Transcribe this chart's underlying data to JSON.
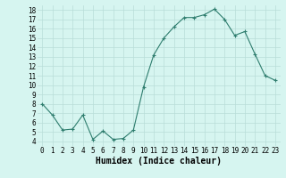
{
  "x": [
    0,
    1,
    2,
    3,
    4,
    5,
    6,
    7,
    8,
    9,
    10,
    11,
    12,
    13,
    14,
    15,
    16,
    17,
    18,
    19,
    20,
    21,
    22,
    23
  ],
  "y": [
    8.0,
    6.8,
    5.2,
    5.3,
    6.8,
    4.2,
    5.1,
    4.2,
    4.3,
    5.2,
    9.8,
    13.2,
    15.0,
    16.2,
    17.2,
    17.2,
    17.5,
    18.1,
    17.0,
    15.3,
    15.7,
    13.3,
    11.0,
    10.5
  ],
  "line_color": "#2e7d6e",
  "marker": "+",
  "marker_size": 3,
  "bg_color": "#d6f5f0",
  "grid_color": "#b8ddd8",
  "xlabel": "Humidex (Indice chaleur)",
  "xlim": [
    -0.5,
    23.5
  ],
  "ylim": [
    3.5,
    18.5
  ],
  "yticks": [
    4,
    5,
    6,
    7,
    8,
    9,
    10,
    11,
    12,
    13,
    14,
    15,
    16,
    17,
    18
  ],
  "xticks": [
    0,
    1,
    2,
    3,
    4,
    5,
    6,
    7,
    8,
    9,
    10,
    11,
    12,
    13,
    14,
    15,
    16,
    17,
    18,
    19,
    20,
    21,
    22,
    23
  ],
  "tick_fontsize": 5.5,
  "xlabel_fontsize": 7.0,
  "linewidth": 0.8,
  "markeredgewidth": 0.8
}
